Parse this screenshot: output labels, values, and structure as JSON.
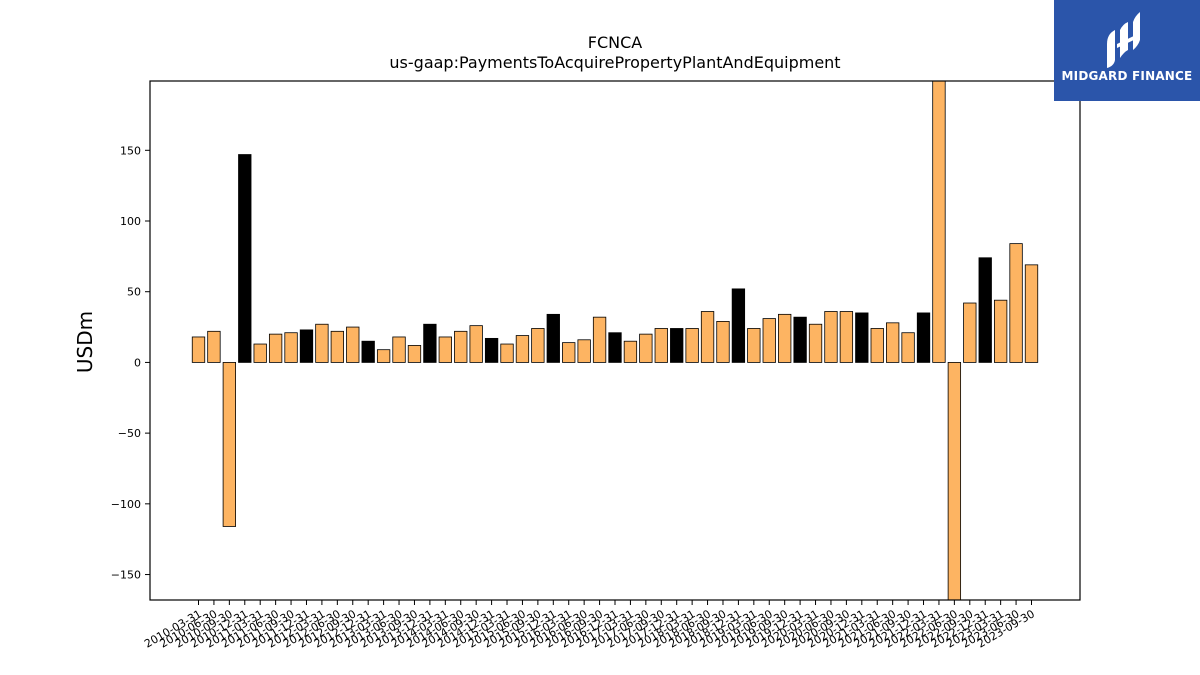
{
  "brand": {
    "name": "MIDGARD FINANCE",
    "color": "#2b55aa"
  },
  "chart_data": {
    "type": "bar",
    "title": "FCNCA",
    "subtitle": "us-gaap:PaymentsToAcquirePropertyPlantAndEquipment",
    "ylabel": "USDm",
    "xlabel": "",
    "ylim": [
      -168,
      199
    ],
    "yticks": [
      -150,
      -100,
      -50,
      0,
      50,
      100,
      150
    ],
    "grid": false,
    "colors": {
      "quarter": "#fdb462",
      "year_end": "#000000"
    },
    "categories": [
      "2010-03-31",
      "2010-06-30",
      "2010-09-30",
      "2010-12-31",
      "2011-03-31",
      "2011-06-30",
      "2011-09-30",
      "2011-12-31",
      "2012-03-31",
      "2012-06-30",
      "2012-09-30",
      "2012-12-31",
      "2013-03-31",
      "2013-06-30",
      "2013-09-30",
      "2013-12-31",
      "2014-03-31",
      "2014-06-30",
      "2014-09-30",
      "2014-12-31",
      "2015-03-31",
      "2015-06-30",
      "2015-09-30",
      "2015-12-31",
      "2016-03-31",
      "2016-06-30",
      "2016-09-30",
      "2016-12-31",
      "2017-03-31",
      "2017-06-30",
      "2017-09-30",
      "2017-12-31",
      "2018-03-31",
      "2018-06-30",
      "2018-09-30",
      "2018-12-31",
      "2019-03-31",
      "2019-06-30",
      "2019-09-30",
      "2019-12-31",
      "2020-03-31",
      "2020-06-30",
      "2020-09-30",
      "2020-12-31",
      "2021-03-31",
      "2021-06-30",
      "2021-09-30",
      "2021-12-31",
      "2022-03-31",
      "2022-06-30",
      "2022-09-30",
      "2022-12-31",
      "2023-03-31",
      "2023-06-30",
      "2023-09-30"
    ],
    "values": [
      18,
      22,
      -116,
      147,
      13,
      20,
      21,
      23,
      27,
      22,
      25,
      15,
      9,
      18,
      12,
      27,
      18,
      22,
      26,
      17,
      13,
      19,
      24,
      34,
      14,
      16,
      32,
      21,
      15,
      20,
      24,
      24,
      24,
      36,
      29,
      52,
      24,
      31,
      34,
      32,
      27,
      36,
      36,
      35,
      24,
      28,
      21,
      35,
      210,
      -170,
      42,
      74,
      44,
      84,
      69
    ],
    "year_end": [
      false,
      false,
      false,
      true,
      false,
      false,
      false,
      true,
      false,
      false,
      false,
      true,
      false,
      false,
      false,
      true,
      false,
      false,
      false,
      true,
      false,
      false,
      false,
      true,
      false,
      false,
      false,
      true,
      false,
      false,
      false,
      true,
      false,
      false,
      false,
      true,
      false,
      false,
      false,
      true,
      false,
      false,
      false,
      true,
      false,
      false,
      false,
      true,
      false,
      false,
      false,
      true,
      false,
      false,
      false
    ]
  }
}
